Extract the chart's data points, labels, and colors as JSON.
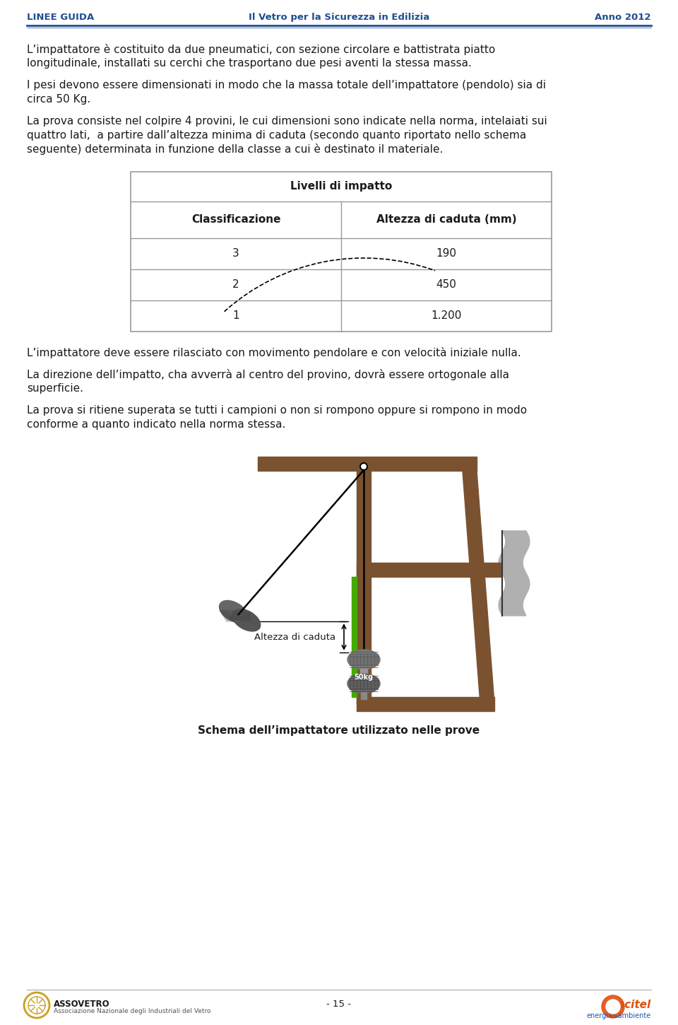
{
  "page_width": 9.6,
  "page_height": 14.5,
  "bg_color": "#ffffff",
  "header_left": "LINEE GUIDA",
  "header_center": "Il Vetro per la Sicurezza in Edilizia",
  "header_right": "Anno 2012",
  "header_color": "#1f4e91",
  "para1_lines": [
    "L’impattatore è costituito da due pneumatici, con sezione circolare e battistrata piatto",
    "longitudinale, installati su cerchi che trasportano due pesi aventi la stessa massa."
  ],
  "para2_lines": [
    "I pesi devono essere dimensionati in modo che la massa totale dell’impattatore (pendolo) sia di",
    "circa 50 Kg."
  ],
  "para3_lines": [
    "La prova consiste nel colpire 4 provini, le cui dimensioni sono indicate nella norma, intelaiati sui",
    "quattro lati,  a partire dall’altezza minima di caduta (secondo quanto riportato nello schema",
    "seguente) determinata in funzione della classe a cui è destinato il materiale."
  ],
  "table_title": "Livelli di impatto",
  "table_col1": "Classificazione",
  "table_col2": "Altezza di caduta (mm)",
  "table_rows": [
    [
      "3",
      "190"
    ],
    [
      "2",
      "450"
    ],
    [
      "1",
      "1.200"
    ]
  ],
  "para4": "L’impattatore deve essere rilasciato con movimento pendolare e con velocità iniziale nulla.",
  "para5_lines": [
    "La direzione dell’impatto, cha avverrà al centro del provino, dovrà essere ortogonale alla",
    "superficie."
  ],
  "para6_lines": [
    "La prova si ritiene superata se tutti i campioni o non si rompono oppure si rompono in modo",
    "conforme a quanto indicato nella norma stessa."
  ],
  "diagram_caption": "Schema dell’impattatore utilizzato nelle prove",
  "altezza_label": "Altezza di caduta",
  "footer_page": "- 15 -",
  "text_color": "#1a1a1a",
  "frame_color": "#7a5230",
  "green_color": "#44aa00",
  "grey_color": "#888888"
}
